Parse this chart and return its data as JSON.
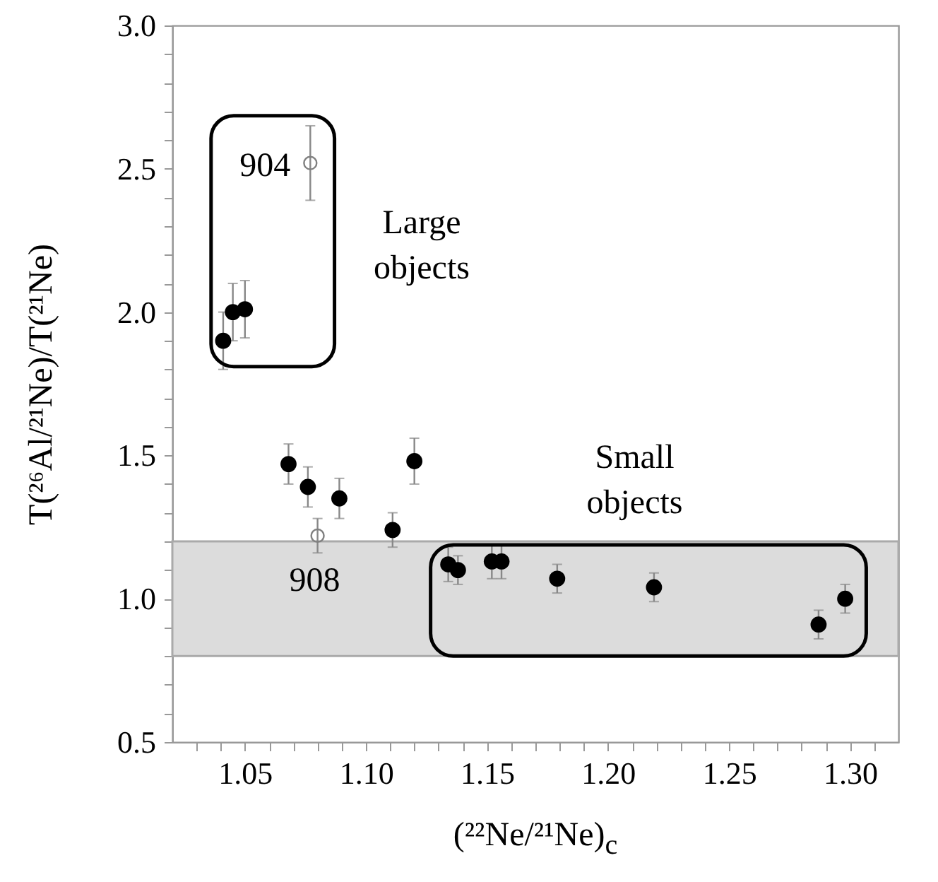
{
  "chart_data": {
    "type": "scatter",
    "xlabel": "(²²Ne/²¹Ne)$_{c}$",
    "ylabel": "T(²⁶Al/²¹Ne)/T(²¹Ne)",
    "xlim": [
      1.02,
      1.32
    ],
    "ylim": [
      0.5,
      3.0
    ],
    "xticks": [
      {
        "value": 1.03,
        "label": null
      },
      {
        "value": 1.04,
        "label": null
      },
      1.05,
      {
        "value": 1.06,
        "label": null
      },
      {
        "value": 1.07,
        "label": null
      },
      {
        "value": 1.08,
        "label": null
      },
      {
        "value": 1.09,
        "label": null
      },
      {
        "value": 1.1,
        "label": "1.10"
      },
      {
        "value": 1.11,
        "label": null
      },
      {
        "value": 1.12,
        "label": null
      },
      {
        "value": 1.13,
        "label": null
      },
      {
        "value": 1.14,
        "label": null
      },
      1.15,
      {
        "value": 1.16,
        "label": null
      },
      {
        "value": 1.17,
        "label": null
      },
      {
        "value": 1.18,
        "label": null
      },
      {
        "value": 1.19,
        "label": null
      },
      {
        "value": 1.2,
        "label": "1.20"
      },
      {
        "value": 1.21,
        "label": null
      },
      {
        "value": 1.22,
        "label": null
      },
      {
        "value": 1.23,
        "label": null
      },
      {
        "value": 1.24,
        "label": null
      },
      1.25,
      {
        "value": 1.26,
        "label": null
      },
      {
        "value": 1.27,
        "label": null
      },
      {
        "value": 1.28,
        "label": null
      },
      {
        "value": 1.29,
        "label": null
      },
      {
        "value": 1.3,
        "label": "1.30"
      },
      {
        "value": 1.31,
        "label": null
      }
    ],
    "yticks": [
      0.5,
      {
        "value": 0.6,
        "label": null
      },
      {
        "value": 0.7,
        "label": null
      },
      {
        "value": 0.8,
        "label": null
      },
      {
        "value": 0.9,
        "label": null
      },
      {
        "value": 1,
        "label": "1.0"
      },
      {
        "value": 1.1,
        "label": null
      },
      {
        "value": 1.2,
        "label": null
      },
      {
        "value": 1.3,
        "label": null
      },
      {
        "value": 1.4,
        "label": null
      },
      1.5,
      {
        "value": 1.6,
        "label": null
      },
      {
        "value": 1.7,
        "label": null
      },
      {
        "value": 1.8,
        "label": null
      },
      {
        "value": 1.9,
        "label": null
      },
      {
        "value": 2,
        "label": "2.0"
      },
      {
        "value": 2.1,
        "label": null
      },
      {
        "value": 2.2,
        "label": null
      },
      {
        "value": 2.3,
        "label": null
      },
      {
        "value": 2.4,
        "label": null
      },
      2.5,
      {
        "value": 2.6,
        "label": null
      },
      {
        "value": 2.7,
        "label": null
      },
      {
        "value": 2.8,
        "label": null
      },
      {
        "value": 2.9,
        "label": null
      },
      {
        "value": 3,
        "label": "3.0"
      }
    ],
    "grid": false,
    "marker": "circle",
    "series": [
      {
        "color": "#000000",
        "x": [
          1.041,
          1.045,
          1.05,
          1.068,
          1.076,
          1.089,
          1.111,
          1.12,
          1.134,
          1.138,
          1.152,
          1.156,
          1.179,
          1.219,
          1.287,
          1.298
        ],
        "values": [
          1.9,
          2.0,
          2.01,
          1.47,
          1.39,
          1.35,
          1.24,
          1.48,
          1.12,
          1.1,
          1.13,
          1.13,
          1.07,
          1.04,
          0.91,
          1.0
        ],
        "errors": [
          0.1,
          0.1,
          0.1,
          0.07,
          0.07,
          0.07,
          0.06,
          0.08,
          0.06,
          0.05,
          0.06,
          0.06,
          0.05,
          0.05,
          0.05,
          0.05
        ]
      },
      {
        "color": "#808080",
        "x": [
          1.077,
          1.08
        ],
        "values": [
          2.52,
          1.22
        ],
        "errors": [
          0.13,
          0.06
        ]
      }
    ],
    "bands": [
      {
        "axis": "y",
        "from": 0.8,
        "to": 1.2,
        "color": "#dcdcdc"
      }
    ],
    "annotations": [
      {
        "text": "904",
        "x": 1.077,
        "y": 2.52
      },
      {
        "text": "908",
        "x": 1.08,
        "y": 1.22
      },
      "Large objects",
      "Small objects"
    ]
  }
}
